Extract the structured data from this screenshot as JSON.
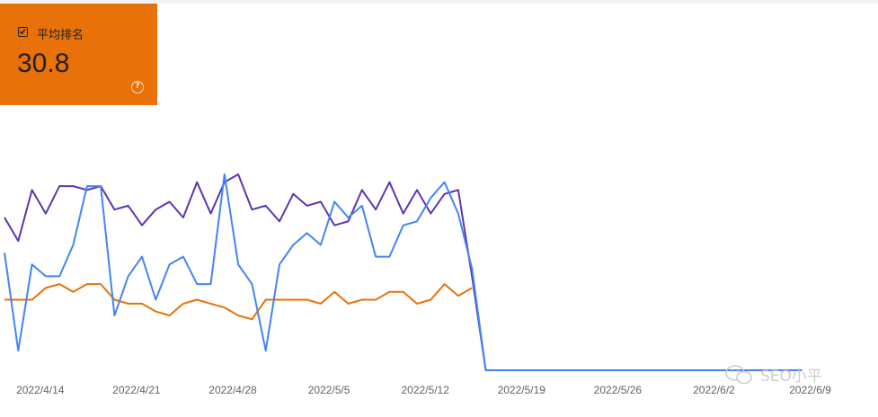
{
  "metric_card": {
    "label": "平均排名",
    "value": "30.8",
    "checked": true,
    "color": "#e8710a",
    "icons": {
      "checkbox": "checkbox-checked-icon",
      "help": "help-icon"
    },
    "help_glyph": "?"
  },
  "watermark": {
    "text": "SEO小平",
    "icon": "wechat-logo-icon"
  },
  "colors": {
    "purple": "#5e35b1",
    "blue": "#4285f4",
    "orange": "#e8710a"
  },
  "chart_data": {
    "type": "line",
    "x_tick_labels": [
      "2022/4/14",
      "2022/4/21",
      "2022/4/28",
      "2022/5/5",
      "2022/5/12",
      "2022/5/19",
      "2022/5/26",
      "2022/6/2",
      "2022/6/9"
    ],
    "x_tick_index": [
      2.6,
      9.6,
      16.6,
      23.6,
      30.6,
      37.6,
      44.6,
      51.6,
      58.6
    ],
    "ylim": [
      0,
      100
    ],
    "grid": false,
    "series": [
      {
        "color": "#5e35b1",
        "values": [
          39,
          33,
          46,
          40,
          47,
          47,
          46,
          47,
          41,
          42,
          37,
          41,
          43,
          39,
          48,
          40,
          48,
          50,
          41,
          42,
          38,
          45,
          42,
          43,
          37,
          38,
          46,
          41,
          48,
          40,
          46,
          40,
          45,
          46,
          24,
          0,
          0,
          0,
          0,
          0,
          0,
          0,
          0,
          0,
          0,
          0,
          0,
          0,
          0,
          0,
          0,
          0,
          0,
          0,
          0,
          0,
          0,
          0,
          0
        ]
      },
      {
        "color": "#4285f4",
        "values": [
          30,
          5,
          27,
          24,
          24,
          32,
          47,
          47,
          14,
          24,
          29,
          18,
          27,
          29,
          22,
          22,
          50,
          27,
          22,
          5,
          27,
          32,
          35,
          32,
          43,
          39,
          42,
          29,
          29,
          37,
          38,
          44,
          48,
          40,
          26,
          0,
          0,
          0,
          0,
          0,
          0,
          0,
          0,
          0,
          0,
          0,
          0,
          0,
          0,
          0,
          0,
          0,
          0,
          0,
          0,
          0,
          0,
          0,
          0
        ]
      },
      {
        "color": "#e8710a",
        "values": [
          18,
          18,
          18,
          21,
          22,
          20,
          22,
          22,
          18,
          17,
          17,
          15,
          14,
          17,
          18,
          17,
          16,
          14,
          13,
          18,
          18,
          18,
          18,
          17,
          20,
          17,
          18,
          18,
          20,
          20,
          17,
          18,
          22,
          19,
          21
        ]
      }
    ]
  }
}
